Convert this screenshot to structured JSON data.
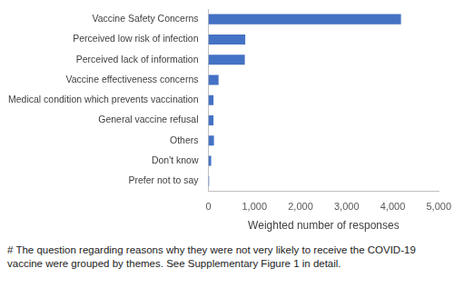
{
  "chart_data": {
    "type": "bar",
    "orientation": "horizontal",
    "categories": [
      "Vaccine Safety Concerns",
      "Perceived low risk of infection",
      "Perceived lack of information",
      "Vaccine effectiveness concerns",
      "Medical condition which prevents vaccination",
      "General vaccine refusal",
      "Others",
      "Don't know",
      "Prefer not to say"
    ],
    "values": [
      4180,
      800,
      790,
      220,
      110,
      110,
      120,
      60,
      15
    ],
    "color": "#4472c4",
    "xlabel": "Weighted number of responses",
    "xlim": [
      0,
      5000
    ],
    "xticks": [
      0,
      1000,
      2000,
      3000,
      4000,
      5000
    ],
    "grid": false,
    "annotations": [
      "# The question regarding reasons why they were not very likely to receive the COVID-19 vaccine were grouped by themes. See Supplementary Figure 1 in detail."
    ]
  }
}
